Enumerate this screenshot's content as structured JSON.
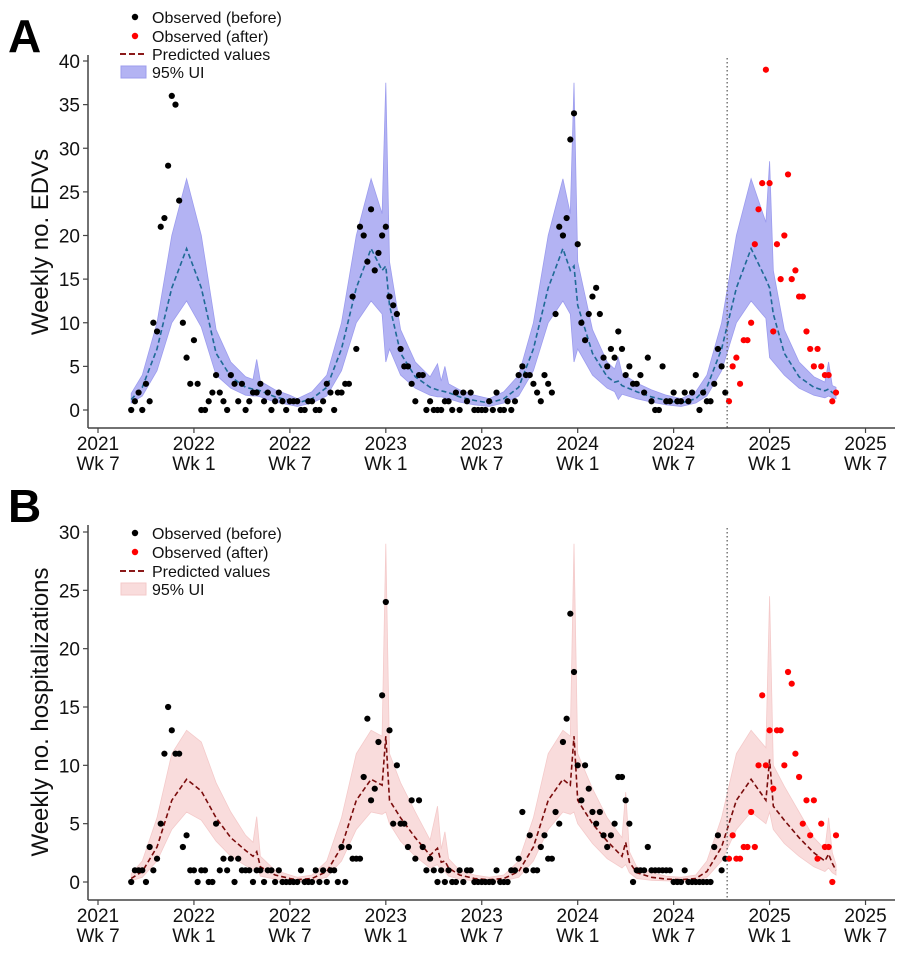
{
  "chart_data": [
    {
      "panel_label": "A",
      "type": "scatter+line+band",
      "ylabel": "Weekly no. EDVs",
      "ylim": [
        0,
        40
      ],
      "y_ticks": [
        0,
        5,
        10,
        15,
        20,
        25,
        30,
        35,
        40
      ],
      "xlim": [
        -3,
        210
      ],
      "x_ticks": [
        {
          "week": 0,
          "label": [
            "2021",
            "Wk 7"
          ]
        },
        {
          "week": 26,
          "label": [
            "2022",
            "Wk 1"
          ]
        },
        {
          "week": 52,
          "label": [
            "2022",
            "Wk 7"
          ]
        },
        {
          "week": 78,
          "label": [
            "2023",
            "Wk 1"
          ]
        },
        {
          "week": 104,
          "label": [
            "2023",
            "Wk 7"
          ]
        },
        {
          "week": 130,
          "label": [
            "2024",
            "Wk 1"
          ]
        },
        {
          "week": 156,
          "label": [
            "2024",
            "Wk 7"
          ]
        },
        {
          "week": 182,
          "label": [
            "2025",
            "Wk 1"
          ]
        },
        {
          "week": 208,
          "label": [
            "2025",
            "Wk 7"
          ]
        }
      ],
      "intervention_week": 170.5,
      "grid": false,
      "legend_position": "top-left",
      "colors": {
        "before": "#000000",
        "after": "#ff0000",
        "predicted": "#1f6a95",
        "band": "#b3b3f3",
        "band_edge": "#9c9cee",
        "legend_line": "#8b1a1a"
      },
      "legend": [
        "Observed (before)",
        "Observed (after)",
        "Predicted values",
        "95% UI"
      ],
      "observed_before": {
        "first_week": 9,
        "values": [
          0,
          1,
          2,
          0,
          3,
          1,
          10,
          9,
          21,
          22,
          28,
          36,
          35,
          24,
          10,
          6,
          3,
          8,
          3,
          0,
          0,
          1,
          2,
          4,
          2,
          1,
          0,
          4,
          3,
          1,
          3,
          0,
          1,
          2,
          2,
          3,
          1,
          2,
          0,
          1,
          2,
          1,
          0,
          1,
          1,
          1,
          0,
          0,
          1,
          1,
          0,
          0,
          1,
          3,
          2,
          0,
          2,
          2,
          3,
          3,
          13,
          7,
          21,
          20,
          17,
          23,
          16,
          18,
          20,
          21,
          13,
          12,
          11,
          7,
          5,
          5,
          3,
          1,
          4,
          4,
          0,
          1,
          0,
          0,
          0,
          1,
          1,
          0,
          2,
          0,
          2,
          1,
          2,
          0,
          0,
          0,
          0,
          1,
          0,
          2,
          0,
          0,
          1,
          0,
          1,
          4,
          5,
          4,
          4,
          3,
          2,
          1,
          4,
          3,
          2,
          11,
          21,
          20,
          22,
          31,
          34,
          19,
          10,
          8,
          11,
          13,
          14,
          11,
          6,
          5,
          7,
          6,
          9,
          7,
          4,
          5,
          3,
          3,
          4,
          2,
          6,
          1,
          0,
          0,
          5,
          1,
          1,
          2,
          1,
          1,
          2,
          1,
          2,
          4,
          0,
          2,
          1,
          1,
          3,
          7,
          5,
          2
        ]
      },
      "observed_after": {
        "first_week": 171,
        "values": [
          1,
          5,
          6,
          3,
          8,
          8,
          10,
          19,
          23,
          26,
          39,
          26,
          9,
          19,
          15,
          20,
          27,
          15,
          16,
          13,
          13,
          9,
          7,
          5,
          7,
          5,
          4,
          4,
          1,
          2
        ]
      },
      "predicted": [
        [
          9,
          1.2,
          0.8,
          1.9
        ],
        [
          12,
          2.6,
          1.6,
          4
        ],
        [
          16,
          7,
          4.5,
          10
        ],
        [
          20,
          14,
          10,
          20
        ],
        [
          24,
          18.5,
          12.5,
          26.5
        ],
        [
          28,
          14,
          9.5,
          20
        ],
        [
          32,
          6.5,
          4,
          9.2
        ],
        [
          36,
          3.8,
          2.5,
          5.5
        ],
        [
          40,
          2.6,
          1.7,
          3.8
        ],
        [
          42,
          2.4,
          1.6,
          3.5
        ],
        [
          43,
          2.3,
          1.6,
          5.8
        ],
        [
          44,
          2.2,
          1.5,
          3.3
        ],
        [
          48,
          1.5,
          0.9,
          2.3
        ],
        [
          52,
          1.1,
          0.6,
          1.7
        ],
        [
          54,
          0.8,
          0.4,
          1.3
        ],
        [
          58,
          1.3,
          0.8,
          2.1
        ],
        [
          62,
          2.6,
          1.6,
          4
        ],
        [
          66,
          7,
          4.5,
          10
        ],
        [
          70,
          14,
          10,
          20
        ],
        [
          74,
          18.5,
          12.5,
          26.5
        ],
        [
          77,
          16,
          11,
          22.5
        ],
        [
          78,
          16.5,
          5.5,
          37.5
        ],
        [
          79,
          12,
          7,
          17
        ],
        [
          82,
          6.5,
          4,
          9.2
        ],
        [
          86,
          3.8,
          2.5,
          5.5
        ],
        [
          90,
          2.6,
          1.7,
          3.8
        ],
        [
          92,
          2.3,
          1.5,
          5.3
        ],
        [
          93,
          2.2,
          1.5,
          3.3
        ],
        [
          94,
          2.1,
          1.4,
          5
        ],
        [
          95,
          2,
          1.3,
          3
        ],
        [
          98,
          1.5,
          0.9,
          2.3
        ],
        [
          102,
          1.1,
          0.6,
          1.7
        ],
        [
          106,
          0.8,
          0.4,
          1.3
        ],
        [
          110,
          1.3,
          0.8,
          2.1
        ],
        [
          114,
          2.6,
          1.6,
          4
        ],
        [
          118,
          7,
          4.5,
          10
        ],
        [
          122,
          14,
          10,
          20
        ],
        [
          126,
          18.5,
          12.5,
          26.5
        ],
        [
          128,
          16,
          11,
          22.5
        ],
        [
          129,
          16.5,
          5.5,
          37.5
        ],
        [
          130,
          12,
          7,
          17
        ],
        [
          134,
          6.5,
          4,
          9.2
        ],
        [
          138,
          3.8,
          2.5,
          5.5
        ],
        [
          140,
          3.2,
          2.1,
          4.7
        ],
        [
          141,
          3.3,
          1.2,
          6
        ],
        [
          142,
          2.8,
          1.8,
          4.2
        ],
        [
          146,
          2.1,
          1.3,
          3.1
        ],
        [
          150,
          1.5,
          0.9,
          2.3
        ],
        [
          154,
          1.1,
          0.6,
          1.7
        ],
        [
          158,
          0.8,
          0.4,
          1.3
        ],
        [
          162,
          1.3,
          0.8,
          2.1
        ],
        [
          165,
          2.6,
          1.6,
          4
        ],
        [
          169,
          7,
          4.5,
          10
        ],
        [
          173,
          14,
          10,
          20
        ],
        [
          177,
          18.5,
          12.5,
          26.5
        ],
        [
          181,
          15,
          10.5,
          21.5
        ],
        [
          182,
          14,
          6,
          28.5
        ],
        [
          183,
          11,
          5.5,
          16
        ],
        [
          186,
          6.5,
          4,
          9.2
        ],
        [
          190,
          3.8,
          2.5,
          5.5
        ],
        [
          194,
          2.6,
          1.7,
          3.8
        ],
        [
          197,
          2.2,
          1.4,
          3.2
        ],
        [
          198,
          2.4,
          1.6,
          5.5
        ],
        [
          199,
          2,
          1.4,
          2.8
        ],
        [
          200,
          1.9,
          1.3,
          2.6
        ]
      ],
      "predicted_columns": [
        "week",
        "predicted",
        "lower_95",
        "upper_95"
      ]
    },
    {
      "panel_label": "B",
      "type": "scatter+line+band",
      "ylabel": "Weekly no. hospitalizations",
      "ylim": [
        0,
        30
      ],
      "y_ticks": [
        0,
        5,
        10,
        15,
        20,
        25,
        30
      ],
      "xlim": [
        -3,
        210
      ],
      "x_ticks": [
        {
          "week": 0,
          "label": [
            "2021",
            "Wk 7"
          ]
        },
        {
          "week": 26,
          "label": [
            "2022",
            "Wk 1"
          ]
        },
        {
          "week": 52,
          "label": [
            "2022",
            "Wk 7"
          ]
        },
        {
          "week": 78,
          "label": [
            "2023",
            "Wk 1"
          ]
        },
        {
          "week": 104,
          "label": [
            "2023",
            "Wk 7"
          ]
        },
        {
          "week": 130,
          "label": [
            "2024",
            "Wk 1"
          ]
        },
        {
          "week": 156,
          "label": [
            "2024",
            "Wk 7"
          ]
        },
        {
          "week": 182,
          "label": [
            "2025",
            "Wk 1"
          ]
        },
        {
          "week": 208,
          "label": [
            "2025",
            "Wk 7"
          ]
        }
      ],
      "intervention_week": 170.5,
      "grid": false,
      "legend_position": "top-left",
      "colors": {
        "before": "#000000",
        "after": "#ff0000",
        "predicted": "#7a0c0c",
        "band": "#f9dcdc",
        "band_edge": "#f4caca",
        "legend_line": "#8b1a1a"
      },
      "legend": [
        "Observed (before)",
        "Observed (after)",
        "Predicted values",
        "95% UI"
      ],
      "observed_before": {
        "first_week": 9,
        "values": [
          0,
          1,
          1,
          1,
          0,
          3,
          1,
          2,
          5,
          11,
          15,
          13,
          11,
          11,
          3,
          4,
          1,
          1,
          0,
          1,
          1,
          0,
          0,
          5,
          1,
          2,
          1,
          2,
          0,
          2,
          1,
          1,
          1,
          0,
          1,
          1,
          0,
          1,
          1,
          0,
          1,
          0,
          0,
          0,
          0,
          0,
          1,
          0,
          0,
          0,
          1,
          0,
          1,
          0,
          1,
          1,
          0,
          3,
          0,
          3,
          2,
          2,
          2,
          9,
          14,
          7,
          8,
          12,
          16,
          24,
          13,
          5,
          10,
          5,
          5,
          3,
          7,
          2,
          7,
          3,
          1,
          2,
          1,
          0,
          1,
          0,
          1,
          0,
          0,
          1,
          0,
          1,
          1,
          0,
          0,
          0,
          0,
          0,
          0,
          1,
          0,
          0,
          0,
          1,
          1,
          2,
          6,
          1,
          4,
          1,
          1,
          3,
          4,
          2,
          2,
          6,
          5,
          12,
          14,
          23,
          18,
          10,
          7,
          10,
          8,
          6,
          5,
          6,
          4,
          3,
          4,
          5,
          9,
          9,
          7,
          5,
          0,
          1,
          1,
          1,
          3,
          1,
          1,
          1,
          1,
          1,
          1,
          0,
          0,
          0,
          1,
          0,
          0,
          0,
          0,
          0,
          0,
          0,
          3,
          4,
          1,
          2
        ]
      },
      "observed_after": {
        "first_week": 171,
        "values": [
          2,
          4,
          2,
          2,
          3,
          3,
          6,
          3,
          10,
          16,
          10,
          13,
          8,
          13,
          13,
          10,
          18,
          17,
          11,
          9,
          5,
          7,
          4,
          7,
          2,
          5,
          3,
          3,
          0,
          4
        ]
      },
      "predicted": [
        [
          9,
          0.3,
          0.1,
          0.7
        ],
        [
          12,
          0.9,
          0.4,
          1.8
        ],
        [
          16,
          3,
          1.8,
          5.5
        ],
        [
          20,
          7,
          4.5,
          11
        ],
        [
          24,
          8.8,
          6,
          13
        ],
        [
          28,
          7.8,
          5.3,
          12
        ],
        [
          32,
          5.5,
          3.5,
          8.5
        ],
        [
          36,
          3.8,
          2.2,
          6
        ],
        [
          40,
          2.7,
          1.4,
          4
        ],
        [
          42,
          2.2,
          1.1,
          3.4
        ],
        [
          43,
          2.6,
          1.3,
          5.6
        ],
        [
          44,
          1.3,
          0.5,
          2.2
        ],
        [
          48,
          0.6,
          0.25,
          1
        ],
        [
          52,
          0.3,
          0.1,
          0.6
        ],
        [
          54,
          0.2,
          0.05,
          0.4
        ],
        [
          58,
          0.3,
          0.1,
          0.6
        ],
        [
          62,
          0.9,
          0.4,
          1.8
        ],
        [
          66,
          3,
          1.8,
          5.5
        ],
        [
          70,
          7,
          4.5,
          11
        ],
        [
          74,
          8.8,
          6,
          13
        ],
        [
          77,
          8.3,
          5.8,
          12.5
        ],
        [
          78,
          12.5,
          6,
          29
        ],
        [
          79,
          7,
          5,
          11
        ],
        [
          82,
          5.5,
          3.5,
          8.5
        ],
        [
          86,
          3.8,
          2.2,
          6
        ],
        [
          90,
          2.3,
          1.2,
          3.6
        ],
        [
          92,
          2.9,
          1.5,
          6.5
        ],
        [
          93,
          1.7,
          0.9,
          2.8
        ],
        [
          94,
          1.8,
          0.9,
          4.3
        ],
        [
          95,
          1.2,
          0.5,
          2
        ],
        [
          98,
          0.6,
          0.25,
          1
        ],
        [
          102,
          0.3,
          0.1,
          0.6
        ],
        [
          106,
          0.2,
          0.05,
          0.4
        ],
        [
          110,
          0.3,
          0.1,
          0.6
        ],
        [
          114,
          0.9,
          0.4,
          1.8
        ],
        [
          118,
          3,
          1.8,
          5.5
        ],
        [
          122,
          7,
          4.5,
          11
        ],
        [
          126,
          8.8,
          6,
          13
        ],
        [
          128,
          8.3,
          5.8,
          12.5
        ],
        [
          129,
          12.5,
          6,
          29
        ],
        [
          130,
          7,
          5,
          11
        ],
        [
          134,
          5,
          3.3,
          8
        ],
        [
          138,
          3.5,
          2,
          5.5
        ],
        [
          142,
          2.2,
          1.2,
          3.8
        ],
        [
          143,
          3.4,
          1.5,
          7.7
        ],
        [
          144,
          1.7,
          0.8,
          2.6
        ],
        [
          146,
          0.8,
          0.3,
          1.3
        ],
        [
          150,
          0.4,
          0.15,
          0.8
        ],
        [
          154,
          0.25,
          0.1,
          0.5
        ],
        [
          158,
          0.2,
          0.05,
          0.4
        ],
        [
          162,
          0.3,
          0.1,
          0.6
        ],
        [
          165,
          0.9,
          0.4,
          1.8
        ],
        [
          169,
          3,
          1.8,
          5.5
        ],
        [
          173,
          7,
          4.5,
          11
        ],
        [
          177,
          8.8,
          6,
          13
        ],
        [
          181,
          7,
          5,
          11.5
        ],
        [
          182,
          10.5,
          6,
          24.5
        ],
        [
          183,
          6.5,
          4.5,
          10
        ],
        [
          186,
          5.3,
          3.3,
          8.2
        ],
        [
          190,
          3.8,
          2.2,
          6
        ],
        [
          194,
          2.5,
          1.3,
          3.8
        ],
        [
          197,
          1.8,
          0.9,
          2.8
        ],
        [
          198,
          2.4,
          1.2,
          5.5
        ],
        [
          199,
          1.6,
          0.8,
          2.5
        ],
        [
          200,
          1,
          0.6,
          1.5
        ]
      ],
      "predicted_columns": [
        "week",
        "predicted",
        "lower_95",
        "upper_95"
      ]
    }
  ]
}
